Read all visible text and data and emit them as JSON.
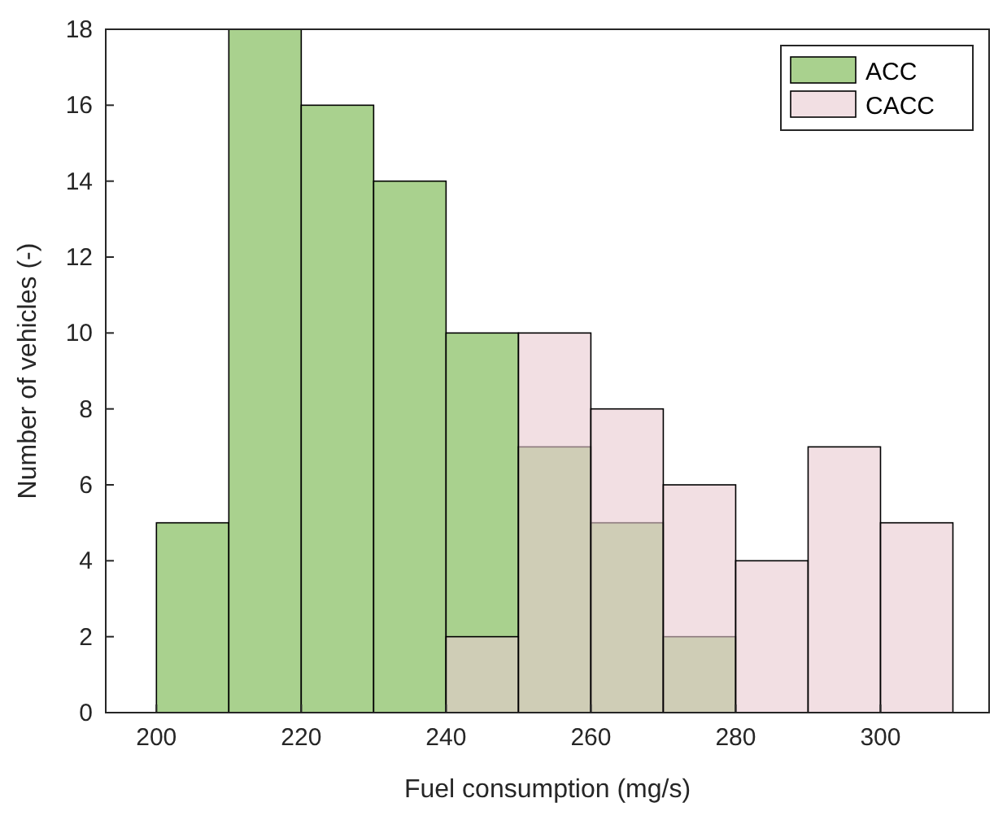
{
  "chart_data": {
    "type": "histogram",
    "xlabel": "Fuel consumption (mg/s)",
    "ylabel": "Number of vehicles (-)",
    "bins": [
      200,
      210,
      220,
      230,
      240,
      250,
      260,
      270,
      280,
      290,
      300,
      310
    ],
    "series": [
      {
        "name": "ACC",
        "color": "#a9d18e",
        "values": [
          5,
          18,
          16,
          14,
          10,
          7,
          5,
          2,
          null,
          null,
          null
        ]
      },
      {
        "name": "CACC",
        "color": "#e9c9d1",
        "values": [
          null,
          null,
          null,
          null,
          2,
          10,
          8,
          6,
          4,
          7,
          5
        ]
      }
    ],
    "xlim": [
      193,
      315
    ],
    "xticks": [
      200,
      220,
      240,
      260,
      280,
      300
    ],
    "ylim": [
      0,
      18
    ],
    "yticks": [
      0,
      2,
      4,
      6,
      8,
      10,
      12,
      14,
      16,
      18
    ],
    "grid": false,
    "legend": "top right"
  }
}
